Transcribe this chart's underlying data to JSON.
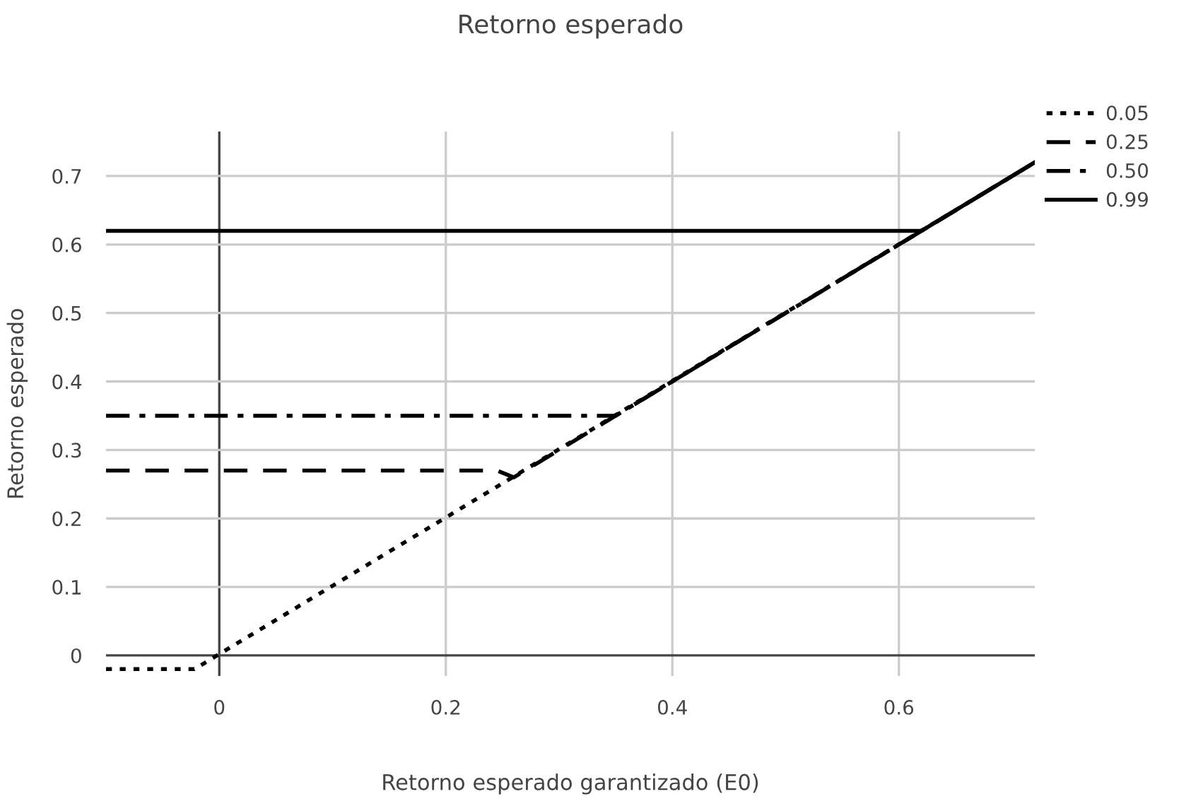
{
  "chart_data": {
    "type": "line",
    "title": "Retorno esperado",
    "xlabel": "Retorno esperado garantizado (E0)",
    "ylabel": "Retorno esperado",
    "xlim": [
      -0.1,
      0.72
    ],
    "xticks": [
      0,
      0.2,
      0.4,
      0.6
    ],
    "ylim": [
      -0.03,
      0.765
    ],
    "yticks": [
      0,
      0.1,
      0.2,
      0.3,
      0.4,
      0.5,
      0.6,
      0.7
    ],
    "grid": true,
    "legend": "top right",
    "marker": "none",
    "series": [
      {
        "name": "0.05",
        "color": "#000000",
        "line_style": "dotted",
        "x": [
          -0.1,
          -0.022,
          0.72
        ],
        "values": [
          -0.02,
          -0.02,
          0.72
        ]
      },
      {
        "name": "0.25",
        "color": "#000000",
        "line_style": "dashed",
        "x": [
          -0.1,
          0.245,
          0.26,
          0.72
        ],
        "values": [
          0.27,
          0.27,
          0.26,
          0.72
        ]
      },
      {
        "name": "0.50",
        "color": "#000000",
        "line_style": "dashdot",
        "x": [
          -0.1,
          0.35,
          0.72
        ],
        "values": [
          0.35,
          0.35,
          0.72
        ]
      },
      {
        "name": "0.99",
        "color": "#000000",
        "line_style": "solid",
        "x": [
          -0.1,
          0.62,
          0.72
        ],
        "values": [
          0.62,
          0.62,
          0.72
        ]
      }
    ]
  }
}
